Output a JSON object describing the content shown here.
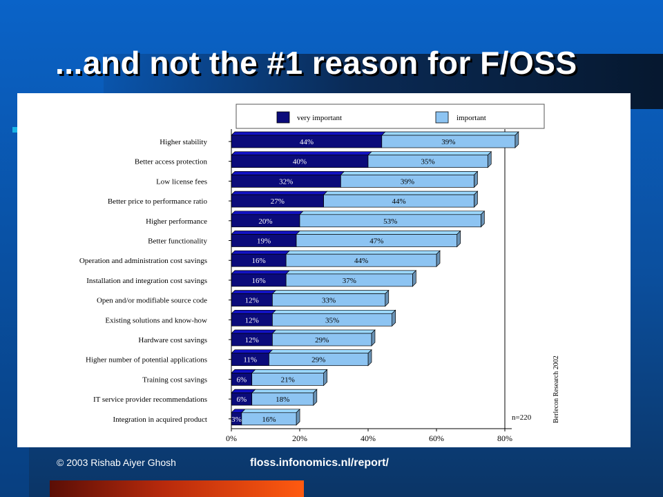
{
  "slide": {
    "title": "...and not the #1 reason for F/OSS",
    "footer_left": "© 2003 Rishab Aiyer Ghosh",
    "footer_right": "floss.infonomics.nl/report/"
  },
  "colors": {
    "very_important": "#0b0b7a",
    "important": "#8dc4f2"
  },
  "chart_data": {
    "type": "bar",
    "orientation": "horizontal",
    "stacked": true,
    "categories": [
      "Higher stability",
      "Better access protection",
      "Low license fees",
      "Better price to performance ratio",
      "Higher performance",
      "Better functionality",
      "Operation and administration cost savings",
      "Installation and integration cost savings",
      "Open and/or modifiable source code",
      "Existing solutions and know-how",
      "Hardware cost savings",
      "Higher number of potential applications",
      "Training cost savings",
      "IT service provider recommendations",
      "Integration in acquired product"
    ],
    "series": [
      {
        "name": "very important",
        "values": [
          44,
          40,
          32,
          27,
          20,
          19,
          16,
          16,
          12,
          12,
          12,
          11,
          6,
          6,
          3
        ]
      },
      {
        "name": "important",
        "values": [
          39,
          35,
          39,
          44,
          53,
          47,
          44,
          37,
          33,
          35,
          29,
          29,
          21,
          18,
          16
        ]
      }
    ],
    "labels": {
      "very important": [
        "44%",
        "40%",
        "32%",
        "27%",
        "20%",
        "19%",
        "16%",
        "16%",
        "12%",
        "12%",
        "12%",
        "11%",
        "6%",
        "6%",
        "3%"
      ],
      "important": [
        "39%",
        "35%",
        "39%",
        "44%",
        "53%",
        "47%",
        "44%",
        "37%",
        "33%",
        "35%",
        "29%",
        "29%",
        "21%",
        "18%",
        "16%"
      ]
    },
    "x_ticks": [
      "0%",
      "20%",
      "40%",
      "60%",
      "80%"
    ],
    "xlim": [
      0,
      80
    ],
    "grid": "vertical at 80%",
    "legend_position": "top",
    "annotations": {
      "n": "n=220",
      "source": "Berlecon Research 2002"
    }
  }
}
